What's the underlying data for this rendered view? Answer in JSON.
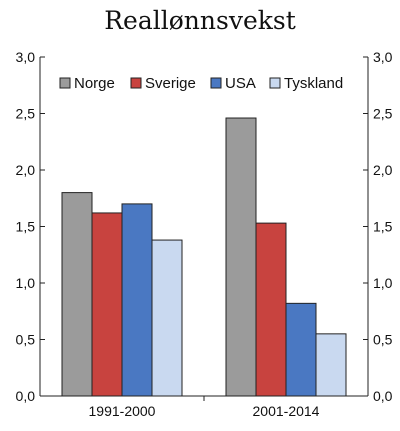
{
  "chart_data": {
    "type": "bar",
    "title": "Reallønnsvekst",
    "xlabel": "",
    "ylabel": "",
    "categories": [
      "1991-2000",
      "2001-2014"
    ],
    "series": [
      {
        "name": "Norge",
        "color": "#9b9b9b",
        "values": [
          1.8,
          2.46
        ]
      },
      {
        "name": "Sverige",
        "color": "#c8433f",
        "values": [
          1.62,
          1.53
        ]
      },
      {
        "name": "USA",
        "color": "#4a78c2",
        "values": [
          1.7,
          0.82
        ]
      },
      {
        "name": "Tyskland",
        "color": "#c9d9f0",
        "values": [
          1.38,
          0.55
        ]
      }
    ],
    "ylim": [
      0,
      3.0
    ],
    "yticks": [
      "0,0",
      "0,5",
      "1,0",
      "1,5",
      "2,0",
      "2,5",
      "3,0"
    ],
    "ytick_values": [
      0,
      0.5,
      1.0,
      1.5,
      2.0,
      2.5,
      3.0
    ],
    "grid": false,
    "legend_position": "top",
    "secondary_y_axis": true
  }
}
